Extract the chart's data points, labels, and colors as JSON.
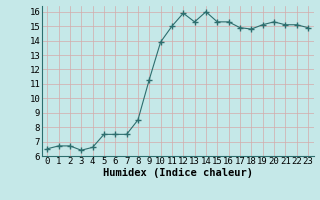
{
  "x": [
    0,
    1,
    2,
    3,
    4,
    5,
    6,
    7,
    8,
    9,
    10,
    11,
    12,
    13,
    14,
    15,
    16,
    17,
    18,
    19,
    20,
    21,
    22,
    23
  ],
  "y": [
    6.5,
    6.7,
    6.7,
    6.4,
    6.6,
    7.5,
    7.5,
    7.5,
    8.5,
    11.3,
    13.9,
    15.0,
    15.9,
    15.3,
    16.0,
    15.3,
    15.3,
    14.9,
    14.8,
    15.1,
    15.3,
    15.1,
    15.1,
    14.9
  ],
  "line_color": "#2d6e6e",
  "marker": "+",
  "marker_size": 4,
  "bg_color": "#c5e8e8",
  "grid_color": "#b0c8c8",
  "xlabel": "Humidex (Indice chaleur)",
  "xlim": [
    -0.5,
    23.5
  ],
  "ylim": [
    6,
    16.4
  ],
  "yticks": [
    6,
    7,
    8,
    9,
    10,
    11,
    12,
    13,
    14,
    15,
    16
  ],
  "xticks": [
    0,
    1,
    2,
    3,
    4,
    5,
    6,
    7,
    8,
    9,
    10,
    11,
    12,
    13,
    14,
    15,
    16,
    17,
    18,
    19,
    20,
    21,
    22,
    23
  ],
  "xlabel_fontsize": 7.5,
  "tick_fontsize": 6.5
}
